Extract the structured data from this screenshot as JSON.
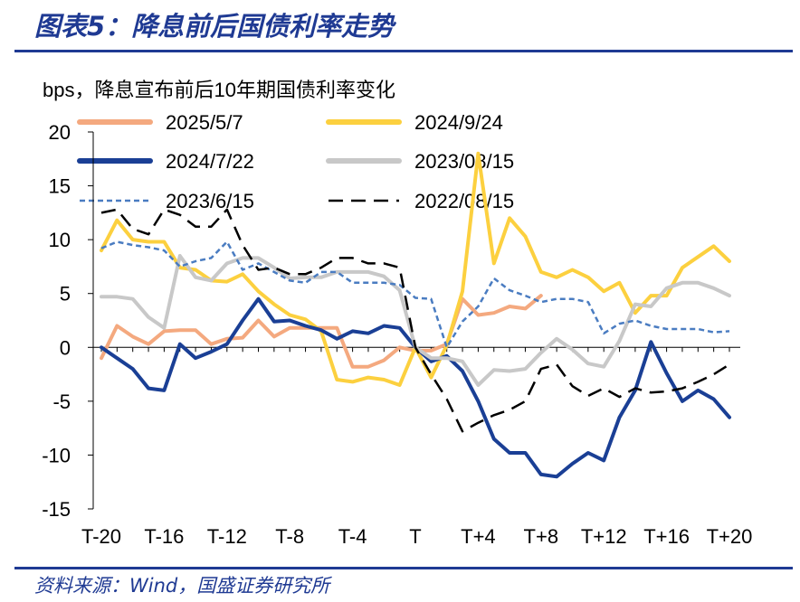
{
  "header": {
    "title": "图表5：降息前后国债利率走势"
  },
  "footer": {
    "source": "资料来源：Wind，国盛证券研究所"
  },
  "chart_data": {
    "type": "line",
    "title": "图表5：降息前后国债利率走势",
    "ylabel": "bps，降息宣布前后10年期国债利率变化",
    "xlabel": "",
    "ylim": [
      -15,
      20
    ],
    "yticks": [
      -15,
      -10,
      -5,
      0,
      5,
      10,
      15,
      20
    ],
    "xlim": [
      -20,
      20
    ],
    "xticks": [
      {
        "x": -20,
        "label": "T-20"
      },
      {
        "x": -16,
        "label": "T-16"
      },
      {
        "x": -12,
        "label": "T-12"
      },
      {
        "x": -8,
        "label": "T-8"
      },
      {
        "x": -4,
        "label": "T-4"
      },
      {
        "x": 0,
        "label": "T"
      },
      {
        "x": 4,
        "label": "T+4"
      },
      {
        "x": 8,
        "label": "T+8"
      },
      {
        "x": 12,
        "label": "T+12"
      },
      {
        "x": 16,
        "label": "T+16"
      },
      {
        "x": 20,
        "label": "T+20"
      }
    ],
    "series": [
      {
        "name": "2025/5/7",
        "color": "#f4a97f",
        "width": 4,
        "dash": "",
        "x0": -20,
        "values": [
          -1,
          2,
          1,
          0.3,
          1.5,
          1.6,
          1.6,
          0.3,
          0.8,
          0.9,
          2.5,
          1,
          1.8,
          1.8,
          1.8,
          1.8,
          -1.8,
          -1.8,
          -1.2,
          0,
          -0.3,
          -0.3,
          0.3,
          4.5,
          3,
          3.2,
          3.8,
          3.6,
          4.8
        ]
      },
      {
        "name": "2024/9/24",
        "color": "#fcd03f",
        "width": 4,
        "dash": "",
        "x0": -20,
        "values": [
          9,
          11.8,
          10,
          9.8,
          9.8,
          7.4,
          7.2,
          6.2,
          6.1,
          6.8,
          5.2,
          4,
          3,
          2.6,
          1.5,
          -3,
          -3.2,
          -2.8,
          -3,
          -3.5,
          0,
          -2.8,
          0.2,
          5.2,
          18,
          7.8,
          12,
          10.3,
          7,
          6.5,
          7.2,
          6.5,
          5.2,
          6,
          3.2,
          4.8,
          4.8,
          7.4,
          8.4,
          9.4,
          8
        ]
      },
      {
        "name": "2024/7/22",
        "color": "#1a3f95",
        "width": 4,
        "dash": "",
        "x0": -20,
        "values": [
          0,
          -1,
          -2,
          -3.8,
          -4,
          0.3,
          -1,
          -0.4,
          0.3,
          2.5,
          4.5,
          2.4,
          2.5,
          2,
          1.6,
          0.8,
          1.5,
          1.3,
          2,
          1.8,
          0,
          -1.3,
          -0.8,
          -2.2,
          -5,
          -8.5,
          -9.8,
          -9.8,
          -11.8,
          -12,
          -10.8,
          -9.8,
          -10.5,
          -6.5,
          -4,
          0.5,
          -2.4,
          -5,
          -4,
          -4.8,
          -6.5
        ]
      },
      {
        "name": "2023/08/15",
        "color": "#c8c8c8",
        "width": 4,
        "dash": "",
        "x0": -20,
        "values": [
          4.7,
          4.7,
          4.5,
          2.8,
          1.8,
          8.5,
          6.5,
          6.2,
          7.8,
          8.3,
          8.3,
          7.4,
          6.4,
          6.5,
          6.5,
          7,
          7,
          7,
          6.6,
          5.3,
          0,
          -1,
          -1,
          -1.3,
          -3.5,
          -2.1,
          -2.2,
          -2,
          -0.5,
          0.8,
          -0.2,
          -1.5,
          -1.8,
          0.6,
          4,
          3.8,
          5.5,
          6,
          6,
          5.5,
          4.8
        ]
      },
      {
        "name": "2023/6/15",
        "color": "#4a7cc1",
        "width": 2.5,
        "dash": "6,4",
        "x0": -20,
        "values": [
          9.2,
          9.8,
          9.5,
          9.3,
          9,
          7.5,
          8,
          8.3,
          9.8,
          7.2,
          7.8,
          7,
          6.2,
          6,
          7,
          7,
          6,
          6,
          6,
          5.8,
          4.6,
          4.5,
          0,
          2.4,
          3.8,
          6.4,
          5.3,
          4.8,
          4.2,
          4.5,
          4.5,
          4.2,
          1.3,
          2.2,
          2.5,
          2,
          1.7,
          1.7,
          1.7,
          1.4,
          1.5
        ]
      },
      {
        "name": "2022/08/15",
        "color": "#000000",
        "width": 2.5,
        "dash": "16,9",
        "x0": -20,
        "values": [
          12.5,
          12.8,
          11,
          10.5,
          12.8,
          12.3,
          11.2,
          11.2,
          12.8,
          9.5,
          7.2,
          7.4,
          6.8,
          6.8,
          7.4,
          8.3,
          8.3,
          7.8,
          7.8,
          7.4,
          0,
          -2.5,
          -4.8,
          -7.8,
          -7,
          -6.3,
          -5.8,
          -5,
          -2,
          -1.6,
          -3.6,
          -4.5,
          -3.8,
          -4.6,
          -3.8,
          -4.2,
          -4.1,
          -3.8,
          -3.2,
          -2.5,
          -1.6
        ]
      }
    ],
    "legend": "top, two columns"
  }
}
